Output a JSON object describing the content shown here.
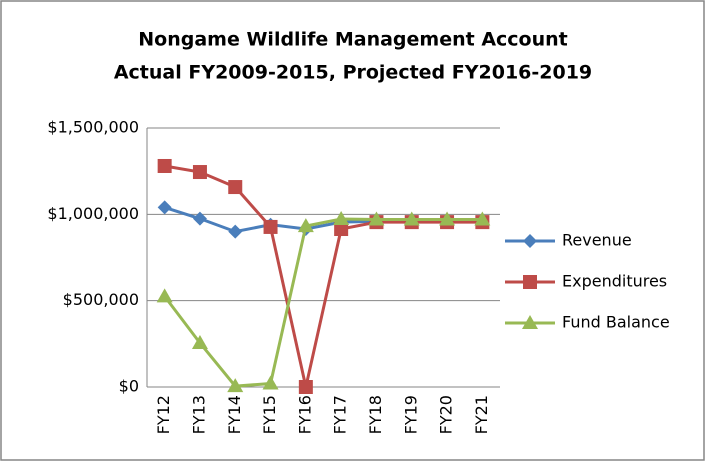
{
  "chart_data": {
    "type": "line",
    "title": [
      "Nongame Wildlife Management Account",
      "Actual FY2009-2015, Projected FY2016-2019"
    ],
    "categories": [
      "FY12",
      "FY13",
      "FY14",
      "FY15",
      "FY16",
      "FY17",
      "FY18",
      "FY19",
      "FY20",
      "FY21"
    ],
    "series": [
      {
        "name": "Revenue",
        "color": "#4a7ebb",
        "marker": "diamond",
        "values": [
          1040000,
          975000,
          900000,
          940000,
          915000,
          955000,
          960000,
          960000,
          960000,
          960000
        ]
      },
      {
        "name": "Expenditures",
        "color": "#be4b48",
        "marker": "square",
        "values": [
          1280000,
          1245000,
          1158000,
          927000,
          0,
          915000,
          955000,
          955000,
          955000,
          955000
        ]
      },
      {
        "name": "Fund Balance",
        "color": "#98b954",
        "marker": "triangle",
        "values": [
          525000,
          255000,
          5000,
          20000,
          932000,
          973000,
          970000,
          970000,
          970000,
          970000
        ]
      }
    ],
    "ylim": [
      0,
      1500000
    ],
    "yticks": [
      {
        "value": 0,
        "label": "$0"
      },
      {
        "value": 500000,
        "label": "$500,000"
      },
      {
        "value": 1000000,
        "label": "$1,000,000"
      },
      {
        "value": 1500000,
        "label": "$1,500,000"
      }
    ],
    "grid": true,
    "legend": "right"
  }
}
